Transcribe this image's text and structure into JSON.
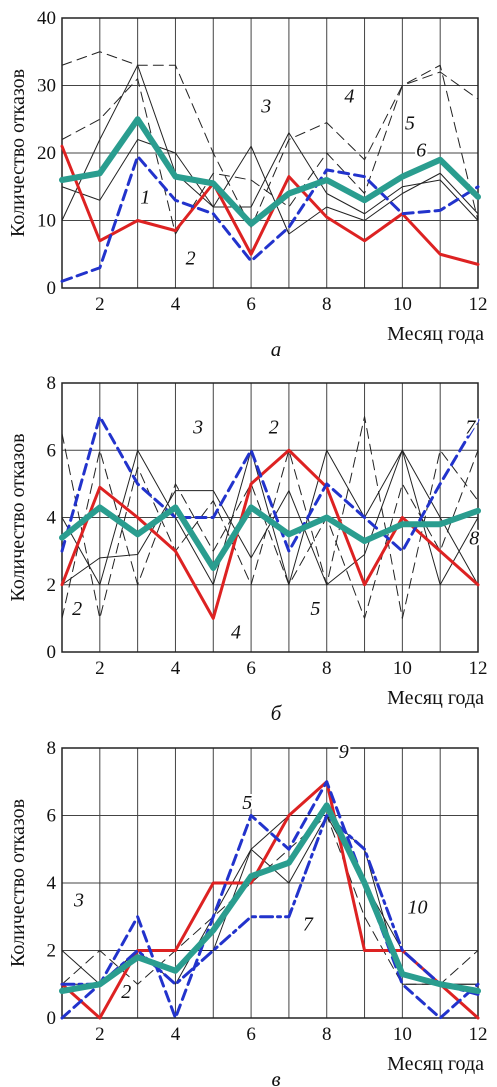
{
  "chart_data": [
    {
      "type": "line",
      "caption": "а",
      "ylabel": "Количество отказов",
      "xlabel": "Месяц года",
      "xlim": [
        1,
        12
      ],
      "ylim": [
        0,
        40
      ],
      "x_ticks": [
        2,
        4,
        6,
        8,
        10,
        12
      ],
      "y_ticks": [
        0,
        10,
        20,
        30,
        40
      ],
      "grid": true,
      "x": [
        1,
        2,
        3,
        4,
        5,
        6,
        7,
        8,
        9,
        10,
        11,
        12
      ],
      "series": [
        {
          "color": "#dd2222",
          "style": "solid",
          "width": 3,
          "values": [
            21,
            7,
            10,
            8.5,
            15.5,
            5,
            16.5,
            10.5,
            7,
            11,
            5,
            3.5
          ]
        },
        {
          "color": "#2233cc",
          "style": "dashed",
          "width": 3,
          "values": [
            1,
            3,
            19.5,
            13,
            11,
            4,
            9,
            17.5,
            16.5,
            11,
            11.5,
            15
          ]
        },
        {
          "color": "#2a9d8f",
          "style": "solid",
          "width": 6,
          "values": [
            16,
            17,
            25,
            16.5,
            15.5,
            9.5,
            14,
            16,
            13,
            16.5,
            19,
            13.5
          ]
        },
        {
          "color": "#222222",
          "style": "dashed",
          "width": 1,
          "values": [
            33,
            35,
            33,
            33,
            20,
            9,
            22,
            24.5,
            19,
            30,
            32,
            28
          ]
        },
        {
          "color": "#222222",
          "style": "solid",
          "width": 1,
          "values": [
            10,
            22,
            33,
            17,
            12,
            21,
            8,
            12,
            10,
            14,
            17,
            11
          ]
        },
        {
          "color": "#222222",
          "style": "dashed",
          "width": 1,
          "values": [
            22,
            25,
            31,
            8,
            17,
            16,
            12,
            20,
            14,
            30,
            33,
            10
          ]
        },
        {
          "color": "#222222",
          "style": "solid",
          "width": 1,
          "values": [
            15,
            13,
            22,
            20,
            12,
            12,
            23,
            14,
            11,
            15,
            16,
            10
          ]
        }
      ],
      "labels": [
        {
          "text": "1",
          "x": 3.2,
          "y": 12.5
        },
        {
          "text": "2",
          "x": 4.4,
          "y": 3.5
        },
        {
          "text": "3",
          "x": 6.4,
          "y": 26
        },
        {
          "text": "4",
          "x": 8.6,
          "y": 27.5
        },
        {
          "text": "5",
          "x": 10.2,
          "y": 23.5
        },
        {
          "text": "6",
          "x": 10.5,
          "y": 19.5
        }
      ]
    },
    {
      "type": "line",
      "caption": "б",
      "ylabel": "Количество отказов",
      "xlabel": "Месяц года",
      "xlim": [
        1,
        12
      ],
      "ylim": [
        0,
        8
      ],
      "x_ticks": [
        2,
        4,
        6,
        8,
        10,
        12
      ],
      "y_ticks": [
        0,
        2,
        4,
        6,
        8
      ],
      "grid": true,
      "x": [
        1,
        2,
        3,
        4,
        5,
        6,
        7,
        8,
        9,
        10,
        11,
        12
      ],
      "series": [
        {
          "color": "#dd2222",
          "style": "solid",
          "width": 3,
          "values": [
            2,
            4.9,
            4,
            3,
            1,
            5,
            6,
            4.9,
            2,
            4,
            3,
            2
          ]
        },
        {
          "color": "#2233cc",
          "style": "dashed",
          "width": 3,
          "values": [
            3,
            7,
            5,
            4,
            4,
            6,
            3,
            5,
            4,
            3,
            5,
            6.9
          ]
        },
        {
          "color": "#2a9d8f",
          "style": "solid",
          "width": 6,
          "values": [
            3.4,
            4.3,
            3.5,
            4.3,
            2.5,
            4.3,
            3.5,
            4,
            3.3,
            3.8,
            3.8,
            4.2
          ]
        },
        {
          "color": "#222222",
          "style": "dashed",
          "width": 1,
          "values": [
            6.5,
            1,
            5.5,
            3,
            4.5,
            2,
            6,
            2,
            7,
            1,
            6,
            4.5
          ]
        },
        {
          "color": "#222222",
          "style": "solid",
          "width": 1,
          "values": [
            4,
            2,
            6,
            4,
            2,
            6,
            2,
            6,
            4,
            6,
            4,
            2
          ]
        },
        {
          "color": "#222222",
          "style": "dashed",
          "width": 1,
          "values": [
            1,
            6,
            2,
            5,
            3,
            5,
            2,
            4,
            1,
            5,
            3,
            6
          ]
        },
        {
          "color": "#222222",
          "style": "solid",
          "width": 1,
          "values": [
            2,
            2.8,
            2.9,
            4.8,
            4.8,
            2.8,
            4.8,
            2,
            2.9,
            6,
            2,
            4
          ]
        }
      ],
      "labels": [
        {
          "text": "2",
          "x": 1.4,
          "y": 1.1
        },
        {
          "text": "3",
          "x": 4.6,
          "y": 6.5
        },
        {
          "text": "2",
          "x": 6.6,
          "y": 6.5
        },
        {
          "text": "7",
          "x": 11.8,
          "y": 6.5
        },
        {
          "text": "8",
          "x": 11.9,
          "y": 3.2
        },
        {
          "text": "5",
          "x": 7.7,
          "y": 1.1
        },
        {
          "text": "4",
          "x": 5.6,
          "y": 0.4
        }
      ]
    },
    {
      "type": "line",
      "caption": "в",
      "ylabel": "Количество отказов",
      "xlabel": "Месяц года",
      "xlim": [
        1,
        12
      ],
      "ylim": [
        0,
        8
      ],
      "x_ticks": [
        2,
        4,
        6,
        8,
        10,
        12
      ],
      "y_ticks": [
        0,
        2,
        4,
        6,
        8
      ],
      "grid": true,
      "x": [
        1,
        2,
        3,
        4,
        5,
        6,
        7,
        8,
        9,
        10,
        11,
        12
      ],
      "series": [
        {
          "color": "#dd2222",
          "style": "solid",
          "width": 3,
          "values": [
            1,
            0,
            2,
            2,
            4,
            4,
            6,
            7,
            2,
            2,
            1,
            0
          ]
        },
        {
          "color": "#2233cc",
          "style": "dashed",
          "width": 3,
          "values": [
            0,
            1,
            3,
            0,
            3,
            6,
            5,
            7,
            4,
            1,
            0,
            1
          ]
        },
        {
          "color": "#2233cc",
          "style": "dashdot",
          "width": 3,
          "values": [
            1,
            1,
            2,
            1,
            2,
            3,
            3,
            6,
            5,
            2,
            1,
            0.7
          ]
        },
        {
          "color": "#2a9d8f",
          "style": "solid",
          "width": 6,
          "values": [
            0.8,
            1,
            1.8,
            1.4,
            2.6,
            4.2,
            4.6,
            6.3,
            4,
            1.3,
            1,
            0.8
          ]
        },
        {
          "color": "#222222",
          "style": "solid",
          "width": 1,
          "values": [
            2,
            1,
            2,
            1,
            3,
            5,
            4,
            6,
            4,
            2,
            1,
            1
          ]
        },
        {
          "color": "#222222",
          "style": "dashed",
          "width": 1,
          "values": [
            1,
            2,
            1,
            2,
            3,
            4,
            5,
            6,
            3,
            1,
            1,
            2
          ]
        },
        {
          "color": "#222222",
          "style": "solid",
          "width": 1,
          "values": [
            1,
            1,
            2,
            2,
            2,
            5,
            6,
            6,
            5,
            1,
            1,
            1
          ]
        }
      ],
      "labels": [
        {
          "text": "3",
          "x": 1.45,
          "y": 3.3
        },
        {
          "text": "2",
          "x": 2.7,
          "y": 0.6
        },
        {
          "text": "5",
          "x": 5.9,
          "y": 6.2
        },
        {
          "text": "9",
          "x": 8.45,
          "y": 7.7
        },
        {
          "text": "7",
          "x": 7.5,
          "y": 2.6
        },
        {
          "text": "10",
          "x": 10.4,
          "y": 3.1
        }
      ]
    }
  ]
}
